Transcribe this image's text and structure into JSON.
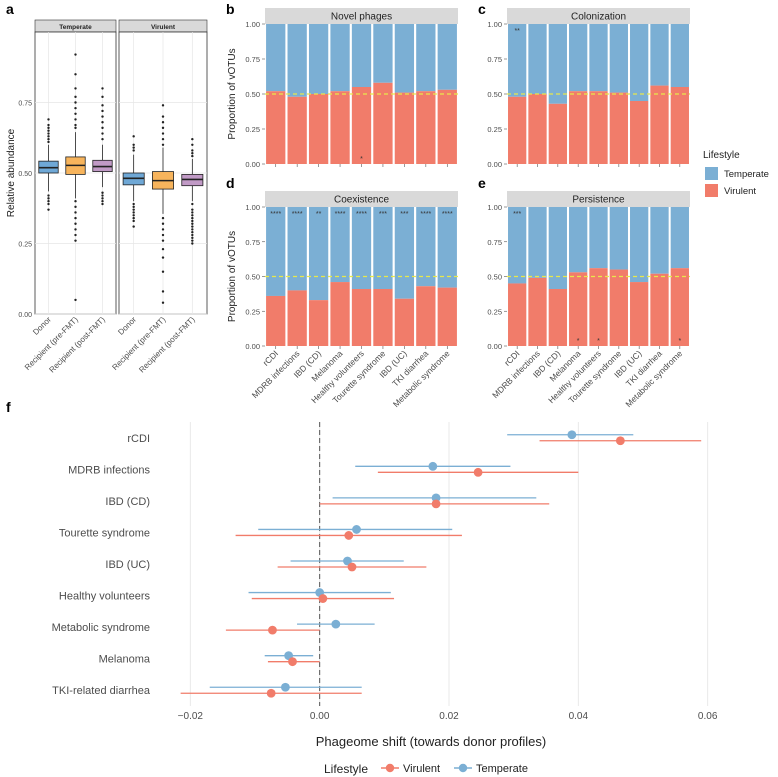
{
  "colors": {
    "temperate": "#7BAFD4",
    "virulent": "#F17C6A",
    "box_donor": "#6FA8D6",
    "box_pre": "#F7B45C",
    "box_post": "#C19AC6",
    "strip": "#D9D9D9",
    "panel_bg": "#FFFFFF",
    "grid": "#E6E6E6",
    "ref_line": "#E8E84A"
  },
  "legend": {
    "title": "Lifestyle",
    "items": [
      {
        "label": "Temperate",
        "key": "temperate"
      },
      {
        "label": "Virulent",
        "key": "virulent"
      }
    ],
    "bottom_title": "Lifestyle",
    "bottom_items": [
      {
        "label": "Virulent",
        "key": "virulent"
      },
      {
        "label": "Temperate",
        "key": "temperate"
      }
    ]
  },
  "chart_data": [
    {
      "panel": "a",
      "type": "box",
      "ylabel": "Relative abundance",
      "ylim": [
        0,
        1
      ],
      "yticks": [
        0.0,
        0.25,
        0.5,
        0.75
      ],
      "yticklabels": [
        "0.00",
        "0.25",
        "0.50",
        "0.75"
      ],
      "facets": [
        {
          "strip": "Temperate",
          "boxes": [
            {
              "label": "Donor",
              "q1": 0.5,
              "median": 0.519,
              "q3": 0.542,
              "whislo": 0.435,
              "whishi": 0.6,
              "color_key": "box_donor",
              "outliers": [
                0.69,
                0.67,
                0.66,
                0.65,
                0.64,
                0.63,
                0.62,
                0.61,
                0.42,
                0.41,
                0.4,
                0.39,
                0.37
              ]
            },
            {
              "label": "Recipient (pre-FMT)",
              "q1": 0.495,
              "median": 0.527,
              "q3": 0.557,
              "whislo": 0.41,
              "whishi": 0.645,
              "color_key": "box_pre",
              "outliers": [
                0.92,
                0.85,
                0.8,
                0.77,
                0.75,
                0.73,
                0.71,
                0.69,
                0.67,
                0.66,
                0.4,
                0.38,
                0.36,
                0.34,
                0.32,
                0.3,
                0.28,
                0.26,
                0.05
              ]
            },
            {
              "label": "Recipient (post-FMT)",
              "q1": 0.505,
              "median": 0.523,
              "q3": 0.545,
              "whislo": 0.45,
              "whishi": 0.6,
              "color_key": "box_post",
              "outliers": [
                0.8,
                0.77,
                0.74,
                0.72,
                0.7,
                0.68,
                0.66,
                0.64,
                0.62,
                0.43,
                0.42,
                0.41,
                0.4,
                0.39
              ]
            }
          ]
        },
        {
          "strip": "Virulent",
          "boxes": [
            {
              "label": "Donor",
              "q1": 0.458,
              "median": 0.481,
              "q3": 0.5,
              "whislo": 0.4,
              "whishi": 0.565,
              "color_key": "box_donor",
              "outliers": [
                0.63,
                0.6,
                0.59,
                0.58,
                0.39,
                0.38,
                0.37,
                0.36,
                0.35,
                0.34,
                0.33,
                0.31
              ]
            },
            {
              "label": "Recipient (pre-FMT)",
              "q1": 0.443,
              "median": 0.473,
              "q3": 0.505,
              "whislo": 0.355,
              "whishi": 0.59,
              "color_key": "box_pre",
              "outliers": [
                0.74,
                0.7,
                0.68,
                0.66,
                0.64,
                0.62,
                0.6,
                0.34,
                0.32,
                0.3,
                0.28,
                0.26,
                0.23,
                0.2,
                0.15,
                0.08,
                0.04
              ]
            },
            {
              "label": "Recipient (post-FMT)",
              "q1": 0.455,
              "median": 0.477,
              "q3": 0.495,
              "whislo": 0.4,
              "whishi": 0.55,
              "color_key": "box_post",
              "outliers": [
                0.62,
                0.6,
                0.58,
                0.57,
                0.56,
                0.39,
                0.37,
                0.36,
                0.35,
                0.34,
                0.33,
                0.32,
                0.31,
                0.3,
                0.29,
                0.28,
                0.27,
                0.26,
                0.25
              ]
            }
          ]
        }
      ]
    },
    {
      "panel": "b",
      "type": "bar",
      "stacked": true,
      "title": "Novel phages",
      "ylabel": "Proportion of vOTUs",
      "yticklabels": [
        "0.00",
        "0.25",
        "0.50",
        "0.75",
        "1.00"
      ],
      "virulent": [
        0.52,
        0.48,
        0.5,
        0.52,
        0.55,
        0.58,
        0.51,
        0.52,
        0.53
      ],
      "top_labels": [
        "",
        "",
        "",
        "",
        "",
        "",
        "",
        "",
        ""
      ],
      "bottom_labels": [
        "",
        "",
        "",
        "",
        "*",
        "",
        "",
        "",
        ""
      ]
    },
    {
      "panel": "c",
      "type": "bar",
      "stacked": true,
      "title": "Colonization",
      "ylabel": "",
      "yticklabels": [
        "0.00",
        "0.25",
        "0.50",
        "0.75",
        "1.00"
      ],
      "virulent": [
        0.48,
        0.5,
        0.43,
        0.52,
        0.52,
        0.51,
        0.45,
        0.56,
        0.55
      ],
      "top_labels": [
        "**",
        "",
        "",
        "",
        "",
        "",
        "",
        "",
        ""
      ],
      "bottom_labels": [
        "",
        "",
        "",
        "",
        "",
        "",
        "",
        "",
        ""
      ]
    },
    {
      "panel": "d",
      "type": "bar",
      "stacked": true,
      "title": "Coexistence",
      "ylabel": "Proportion of vOTUs",
      "yticklabels": [
        "0.00",
        "0.25",
        "0.50",
        "0.75",
        "1.00"
      ],
      "categories": [
        "rCDI",
        "MDRB infections",
        "IBD (CD)",
        "Melanoma",
        "Healthy volunteers",
        "Tourette syndrome",
        "IBD (UC)",
        "TKI diarrhea",
        "Metabolic syndrome"
      ],
      "virulent": [
        0.36,
        0.4,
        0.33,
        0.46,
        0.41,
        0.41,
        0.34,
        0.43,
        0.42
      ],
      "top_labels": [
        "****",
        "****",
        "**",
        "****",
        "****",
        "***",
        "***",
        "****",
        "****"
      ],
      "bottom_labels": [
        "",
        "",
        "",
        "",
        "",
        "",
        "",
        "",
        ""
      ]
    },
    {
      "panel": "e",
      "type": "bar",
      "stacked": true,
      "title": "Persistence",
      "ylabel": "",
      "yticklabels": [
        "0.00",
        "0.25",
        "0.50",
        "0.75",
        "1.00"
      ],
      "categories": [
        "rCDI",
        "MDRB infections",
        "IBD (CD)",
        "Melanoma",
        "Healthy volunteers",
        "Tourette syndrome",
        "IBD (UC)",
        "TKI diarrhea",
        "Metabolic syndrome"
      ],
      "virulent": [
        0.45,
        0.49,
        0.41,
        0.53,
        0.56,
        0.55,
        0.46,
        0.52,
        0.56
      ],
      "top_labels": [
        "***",
        "",
        "",
        "",
        "",
        "",
        "",
        "",
        ""
      ],
      "bottom_labels": [
        "",
        "",
        "",
        "*",
        "*",
        "",
        "",
        "",
        "*"
      ]
    },
    {
      "panel": "f",
      "type": "dot-interval",
      "xlabel": "Phageome shift (towards donor profiles)",
      "xlim": [
        -0.025,
        0.065
      ],
      "xticks": [
        -0.02,
        0.0,
        0.02,
        0.04,
        0.06
      ],
      "xticklabels": [
        "−0.02",
        "0.00",
        "0.02",
        "0.04",
        "0.06"
      ],
      "rows": [
        {
          "label": "rCDI",
          "temperate": [
            0.039,
            0.029,
            0.0485
          ],
          "virulent": [
            0.0465,
            0.034,
            0.059
          ]
        },
        {
          "label": "MDRB infections",
          "temperate": [
            0.0175,
            0.0055,
            0.0295
          ],
          "virulent": [
            0.0245,
            0.009,
            0.04
          ]
        },
        {
          "label": "IBD (CD)",
          "temperate": [
            0.018,
            0.002,
            0.0335
          ],
          "virulent": [
            0.018,
            0.0,
            0.0355
          ]
        },
        {
          "label": "Tourette syndrome",
          "temperate": [
            0.0057,
            -0.0095,
            0.0205
          ],
          "virulent": [
            0.0045,
            -0.013,
            0.022
          ]
        },
        {
          "label": "IBD (UC)",
          "temperate": [
            0.0043,
            -0.0045,
            0.013
          ],
          "virulent": [
            0.005,
            -0.0065,
            0.0165
          ]
        },
        {
          "label": "Healthy volunteers",
          "temperate": [
            0.0,
            -0.011,
            0.011
          ],
          "virulent": [
            0.0005,
            -0.0105,
            0.0115
          ]
        },
        {
          "label": "Metabolic syndrome",
          "temperate": [
            0.0025,
            -0.0035,
            0.0085
          ],
          "virulent": [
            -0.0073,
            -0.0145,
            0.0
          ]
        },
        {
          "label": "Melanoma",
          "temperate": [
            -0.0048,
            -0.0085,
            -0.001
          ],
          "virulent": [
            -0.0042,
            -0.008,
            0.0
          ]
        },
        {
          "label": "TKI-related diarrhea",
          "temperate": [
            -0.0053,
            -0.017,
            0.0065
          ],
          "virulent": [
            -0.0075,
            -0.0215,
            0.0065
          ]
        }
      ]
    }
  ]
}
